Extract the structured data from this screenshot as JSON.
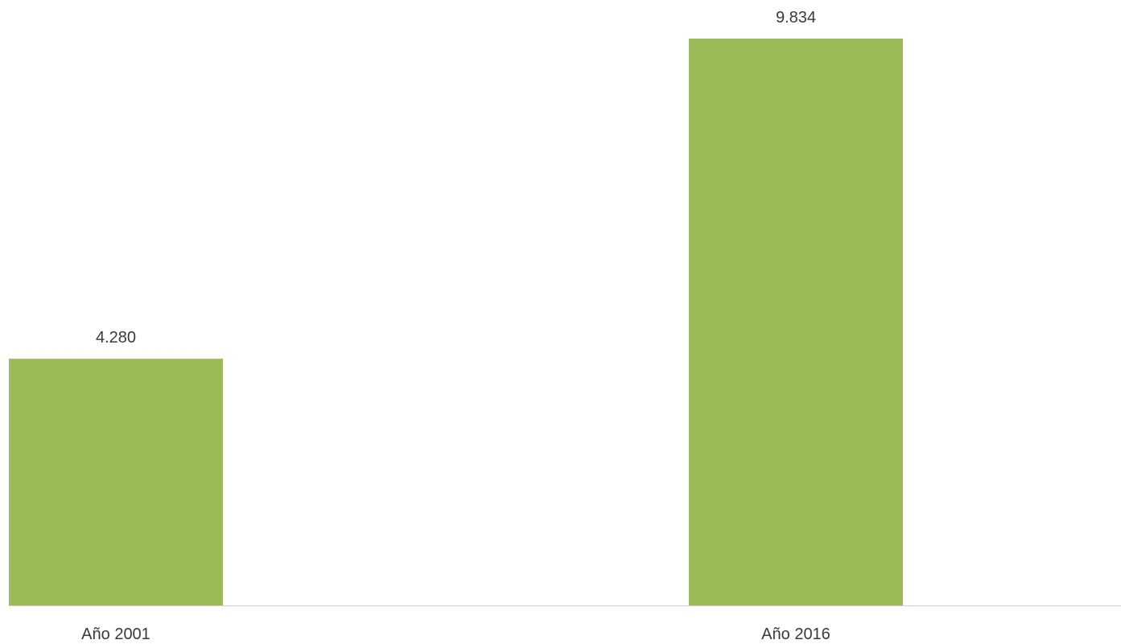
{
  "chart_data": {
    "type": "bar",
    "categories": [
      "Año 2001",
      "Año 2016"
    ],
    "values": [
      4280,
      9834
    ],
    "data_labels": [
      "4.280",
      "9.834"
    ],
    "bar_color": "#9bbb59",
    "axis_color": "#d0d0d0",
    "ylim": [
      0,
      10000
    ],
    "grid": false,
    "legend": "none"
  }
}
